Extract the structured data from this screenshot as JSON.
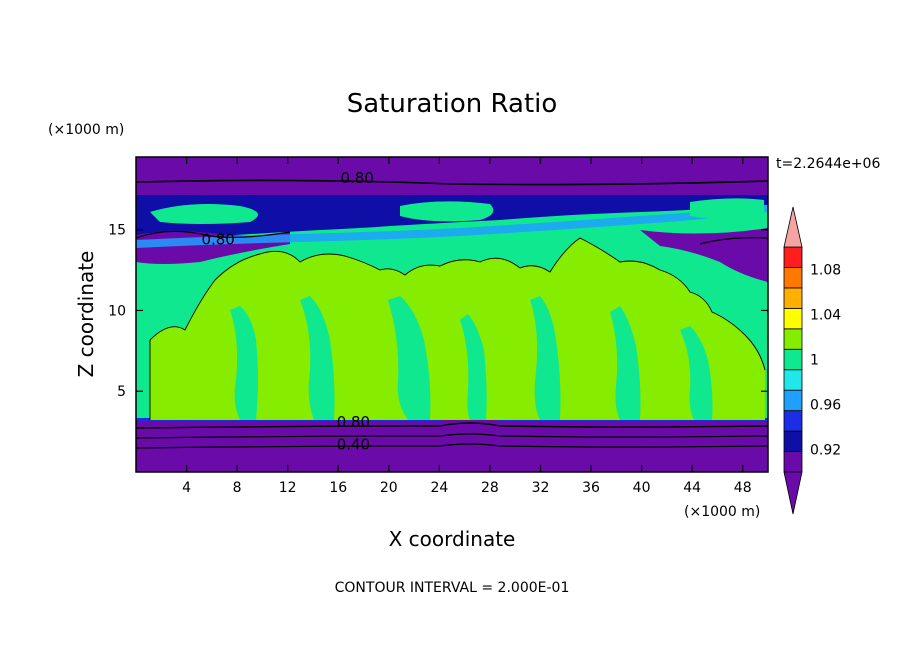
{
  "chart_data": {
    "type": "contour",
    "title": "Saturation Ratio",
    "xlabel": "X coordinate",
    "ylabel": "Z coordinate",
    "x_units": "(×1000 m)",
    "y_units": "(×1000 m)",
    "time_label": "t=2.2644e+06",
    "footer": "CONTOUR INTERVAL = 2.000E-01",
    "xlim": [
      0,
      50
    ],
    "ylim": [
      0,
      19.5
    ],
    "x_ticks": [
      "4",
      "8",
      "12",
      "16",
      "20",
      "24",
      "28",
      "32",
      "36",
      "40",
      "44",
      "48"
    ],
    "x_tick_values": [
      4,
      8,
      12,
      16,
      20,
      24,
      28,
      32,
      36,
      40,
      44,
      48
    ],
    "y_ticks": [
      "5",
      "10",
      "15"
    ],
    "y_tick_values": [
      5,
      10,
      15
    ],
    "contour_labels": [
      {
        "text": "0.80",
        "x": 17.5,
        "z": 18.2
      },
      {
        "text": "0.80",
        "x": 6.5,
        "z": 14.4
      },
      {
        "text": "0.80",
        "x": 17.2,
        "z": 3.1
      },
      {
        "text": "0.40",
        "x": 17.2,
        "z": 1.7
      }
    ],
    "colorbar": {
      "labels": [
        "1.08",
        "1.04",
        "1",
        "0.96",
        "0.92"
      ],
      "label_values": [
        1.08,
        1.04,
        1.0,
        0.96,
        0.92
      ],
      "levels": [
        0.9,
        0.92,
        0.94,
        0.96,
        0.98,
        1.0,
        1.02,
        1.04,
        1.06,
        1.08,
        1.1
      ],
      "colors": [
        "#6a0aa8",
        "#0f0fa8",
        "#1a2ee6",
        "#1ea0ff",
        "#21e8e8",
        "#10e890",
        "#86ec00",
        "#ffff00",
        "#ffb000",
        "#ff7800",
        "#ff1e1e"
      ],
      "under_color": "#6a0aa8",
      "over_color": "#f5a3a3"
    }
  }
}
